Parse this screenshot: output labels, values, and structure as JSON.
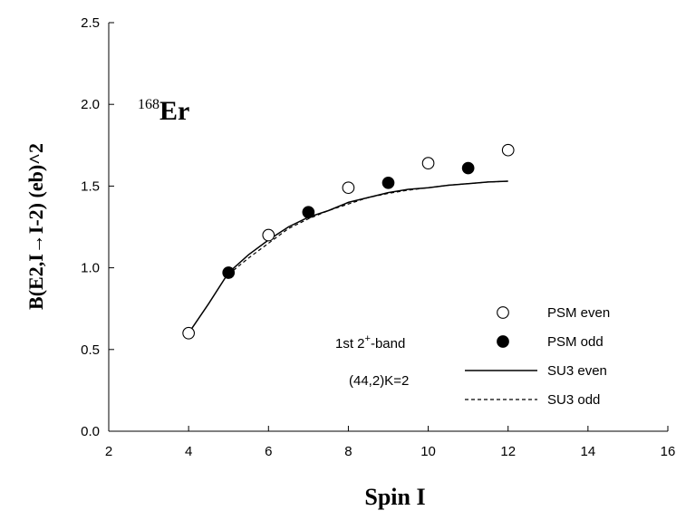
{
  "chart_data": {
    "type": "scatter",
    "title": "",
    "xlabel": "Spin I",
    "ylabel": "B(E2,I→I-2) (eb)^2",
    "xlim": [
      2,
      16
    ],
    "ylim": [
      0.0,
      2.5
    ],
    "xticks": [
      "2",
      "4",
      "6",
      "8",
      "10",
      "12",
      "14",
      "16"
    ],
    "yticks": [
      "0.0",
      "0.5",
      "1.0",
      "1.5",
      "2.0",
      "2.5"
    ],
    "grid": false,
    "legend_position": "bottom-right",
    "series": [
      {
        "name": "PSM even",
        "style": "open-circle",
        "x": [
          4,
          6,
          8,
          10,
          12
        ],
        "y": [
          0.6,
          1.2,
          1.49,
          1.64,
          1.72
        ]
      },
      {
        "name": "PSM odd",
        "style": "filled-circle",
        "x": [
          5,
          7,
          9,
          11
        ],
        "y": [
          0.97,
          1.34,
          1.52,
          1.61
        ]
      },
      {
        "name": "SU3 even",
        "style": "solid-line",
        "x": [
          4,
          4.5,
          5,
          5.5,
          6,
          6.5,
          7,
          7.5,
          8,
          8.5,
          9,
          9.5,
          10,
          10.5,
          11,
          11.5,
          12
        ],
        "y": [
          0.6,
          0.78,
          0.97,
          1.08,
          1.17,
          1.25,
          1.31,
          1.35,
          1.4,
          1.43,
          1.46,
          1.48,
          1.49,
          1.505,
          1.515,
          1.525,
          1.53
        ]
      },
      {
        "name": "SU3 odd",
        "style": "dashed-line",
        "x": [
          5,
          5.5,
          6,
          6.5,
          7,
          7.5,
          8,
          8.5,
          9,
          9.5,
          10,
          10.5,
          11,
          11.5,
          12
        ],
        "y": [
          0.96,
          1.06,
          1.15,
          1.24,
          1.3,
          1.35,
          1.39,
          1.43,
          1.455,
          1.475,
          1.49,
          1.505,
          1.515,
          1.525,
          1.53
        ]
      }
    ],
    "annotations": {
      "nucleus_mass": "168",
      "nucleus_symbol": "Er",
      "band_prefix": "1st 2",
      "band_sup": "+",
      "band_suffix": "-band",
      "config": "(44,2)K=2"
    }
  }
}
